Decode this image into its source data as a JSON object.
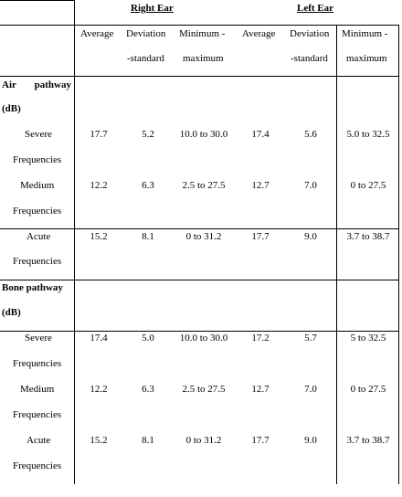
{
  "header": {
    "right_ear": "Right Ear",
    "left_ear": "Left Ear",
    "col_average": "Average",
    "col_deviation_1": "Deviation",
    "col_deviation_2": "-standard",
    "col_minmax_1": "Minimum -",
    "col_minmax_2": "maximum"
  },
  "sections": [
    {
      "title_1": "Air pathway",
      "title_2": "(dB)",
      "rows": [
        {
          "label_1": "Severe",
          "label_2": "Frequencies",
          "r_avg": "17.7",
          "r_dev": "5.2",
          "r_range": "10.0 to 30.0",
          "l_avg": "17.4",
          "l_dev": "5.6",
          "l_range": "5.0 to 32.5"
        },
        {
          "label_1": "Medium",
          "label_2": "Frequencies",
          "r_avg": "12.2",
          "r_dev": "6.3",
          "r_range": "2.5 to 27.5",
          "l_avg": "12.7",
          "l_dev": "7.0",
          "l_range": "0 to 27.5"
        },
        {
          "label_1": "Acute",
          "label_2": "Frequencies",
          "r_avg": "15.2",
          "r_dev": "8.1",
          "r_range": "0 to 31.2",
          "l_avg": "17.7",
          "l_dev": "9.0",
          "l_range": "3.7 to 38.7"
        }
      ]
    },
    {
      "title_1": "Bone pathway",
      "title_2": "(dB)",
      "rows": [
        {
          "label_1": "Severe",
          "label_2": "Frequencies",
          "r_avg": "17.4",
          "r_dev": "5.0",
          "r_range": "10.0 to 30.0",
          "l_avg": "17.2",
          "l_dev": "5.7",
          "l_range": "5 to 32.5"
        },
        {
          "label_1": "Medium",
          "label_2": "Frequencies",
          "r_avg": "12.2",
          "r_dev": "6.3",
          "r_range": "2.5 to 27.5",
          "l_avg": "12.7",
          "l_dev": "7.0",
          "l_range": "0 to 27.5"
        },
        {
          "label_1": "Acute",
          "label_2": "Frequencies",
          "r_avg": "15.2",
          "r_dev": "8.1",
          "r_range": "0 to 31.2",
          "l_avg": "17.7",
          "l_dev": "9.0",
          "l_range": "3.7 to 38.7"
        }
      ]
    }
  ]
}
